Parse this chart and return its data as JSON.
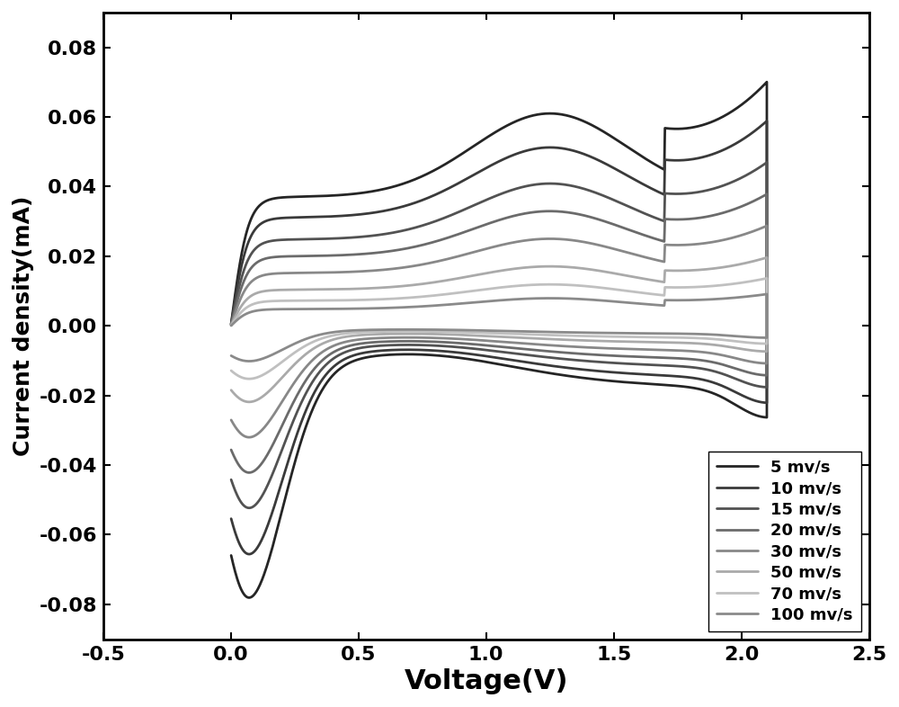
{
  "title": "",
  "xlabel": "Voltage(V)",
  "ylabel": "Current density(mA)",
  "xlim": [
    -0.5,
    2.5
  ],
  "ylim": [
    -0.09,
    0.09
  ],
  "xticks": [
    -0.5,
    0.0,
    0.5,
    1.0,
    1.5,
    2.0,
    2.5
  ],
  "yticks": [
    -0.08,
    -0.06,
    -0.04,
    -0.02,
    0.0,
    0.02,
    0.04,
    0.06,
    0.08
  ],
  "scan_rates": [
    "5 mv/s",
    "10 mv/s",
    "15 mv/s",
    "20 mv/s",
    "30 mv/s",
    "50 mv/s",
    "70 mv/s",
    "100 mv/s"
  ],
  "colors": [
    "#252525",
    "#3a3a3a",
    "#525252",
    "#6b6b6b",
    "#888888",
    "#aaaaaa",
    "#c0c0c0",
    "#8a8a8a"
  ],
  "amplitudes": [
    1.0,
    0.84,
    0.67,
    0.54,
    0.41,
    0.28,
    0.195,
    0.13
  ],
  "background_color": "#ffffff",
  "xlabel_fontsize": 22,
  "ylabel_fontsize": 18,
  "tick_fontsize": 16,
  "legend_fontsize": 13,
  "line_width": 2.0
}
